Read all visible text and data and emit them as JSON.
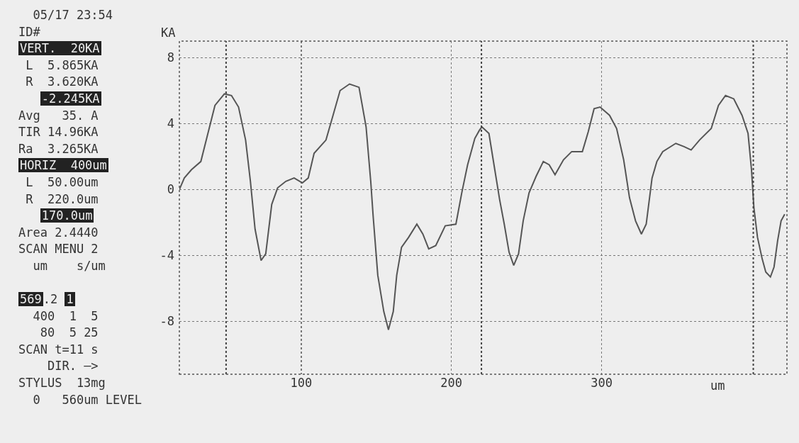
{
  "chart_data": {
    "type": "line",
    "xlabel": "um",
    "ylabel": "KA",
    "annotations": [
      "05/17 23:54",
      "ID#",
      "VERT.  20KA",
      "L  5.865KA",
      "R  3.620KA",
      "-2.245KA",
      "Avg   35. A",
      "TIR 14.96KA",
      "Ra  3.265KA",
      "HORIZ  400um",
      "L  50.00um",
      "R  220.0um",
      "170.0um",
      "Area 2.4440",
      "SCAN MENU 2",
      "um    s/um",
      "569",
      ".2",
      "1",
      "400  1  5",
      "80  5 25",
      "SCAN t=11 s",
      "DIR. —>",
      "STYLUS  13mg",
      "0   560um LEVEL"
    ],
    "x": [
      18.9,
      22.2,
      26.9,
      33.2,
      37.9,
      42.6,
      48.9,
      53.6,
      58.3,
      63.0,
      66.2,
      69.3,
      73.3,
      76.4,
      80.4,
      84.3,
      89.8,
      95.3,
      100.8,
      104.7,
      108.6,
      116.5,
      121.2,
      125.9,
      132.2,
      138.5,
      143.2,
      146.3,
      147.9,
      151.0,
      155.0,
      158.1,
      161.3,
      163.6,
      166.8,
      171.5,
      177.0,
      181.0,
      184.9,
      189.6,
      195.9,
      203.0,
      206.9,
      210.8,
      215.6,
      218.7,
      220.3,
      225.0,
      228.9,
      232.1,
      235.2,
      238.4,
      241.5,
      244.7,
      247.8,
      251.7,
      256.4,
      261.2,
      265.1,
      269.0,
      274.6,
      280.1,
      287.2,
      291.1,
      295.0,
      299.0,
      305.3,
      310.0,
      314.7,
      318.6,
      322.6,
      326.5,
      329.7,
      333.6,
      336.8,
      340.7,
      349.4,
      354.9,
      359.6,
      365.2,
      373.0,
      377.8,
      382.5,
      388.0,
      393.5,
      397.5,
      399.8,
      401.4,
      403.8,
      406.9,
      409.3,
      412.4,
      414.8,
      417.2,
      419.5,
      421.9
    ],
    "values": [
      0,
      0.7,
      1.2,
      1.7,
      3.4,
      5.1,
      5.8,
      5.7,
      5.0,
      3.0,
      0.5,
      -2.4,
      -4.3,
      -3.9,
      -0.9,
      0.1,
      0.5,
      0.7,
      0.4,
      0.7,
      2.2,
      3.0,
      4.5,
      6.0,
      6.4,
      6.2,
      3.8,
      0.5,
      -1.6,
      -5.2,
      -7.4,
      -8.5,
      -7.4,
      -5.2,
      -3.5,
      -2.9,
      -2.1,
      -2.7,
      -3.6,
      -3.4,
      -2.2,
      -2.1,
      -0.2,
      1.5,
      3.1,
      3.6,
      3.8,
      3.4,
      1.2,
      -0.6,
      -2.1,
      -3.8,
      -4.6,
      -3.9,
      -1.9,
      -0.2,
      0.8,
      1.7,
      1.5,
      0.9,
      1.8,
      2.3,
      2.3,
      3.5,
      4.9,
      5.0,
      4.5,
      3.7,
      1.8,
      -0.5,
      -1.9,
      -2.7,
      -2.1,
      0.7,
      1.7,
      2.3,
      2.8,
      2.6,
      2.4,
      3.0,
      3.7,
      5.1,
      5.7,
      5.5,
      4.5,
      3.4,
      1.2,
      -1.1,
      -2.9,
      -4.2,
      -5.0,
      -5.3,
      -4.7,
      -3.1,
      -1.9,
      -1.5
    ],
    "color": "#555555",
    "line_style": "solid",
    "xlim": [
      18.9,
      423.4
    ],
    "ylim": [
      -11.2,
      9
    ],
    "xticks": [
      100,
      200,
      300
    ],
    "yticks": [
      -8,
      -4,
      0,
      4,
      8
    ],
    "grid": true,
    "ref_lines": [
      {
        "axis": "x",
        "value": 50,
        "line_style": "dotted",
        "color": "#444444"
      },
      {
        "axis": "x",
        "value": 220,
        "line_style": "dotted",
        "color": "#444444"
      },
      {
        "axis": "x",
        "value": 401,
        "line_style": "dotted",
        "color": "#444444"
      }
    ]
  }
}
